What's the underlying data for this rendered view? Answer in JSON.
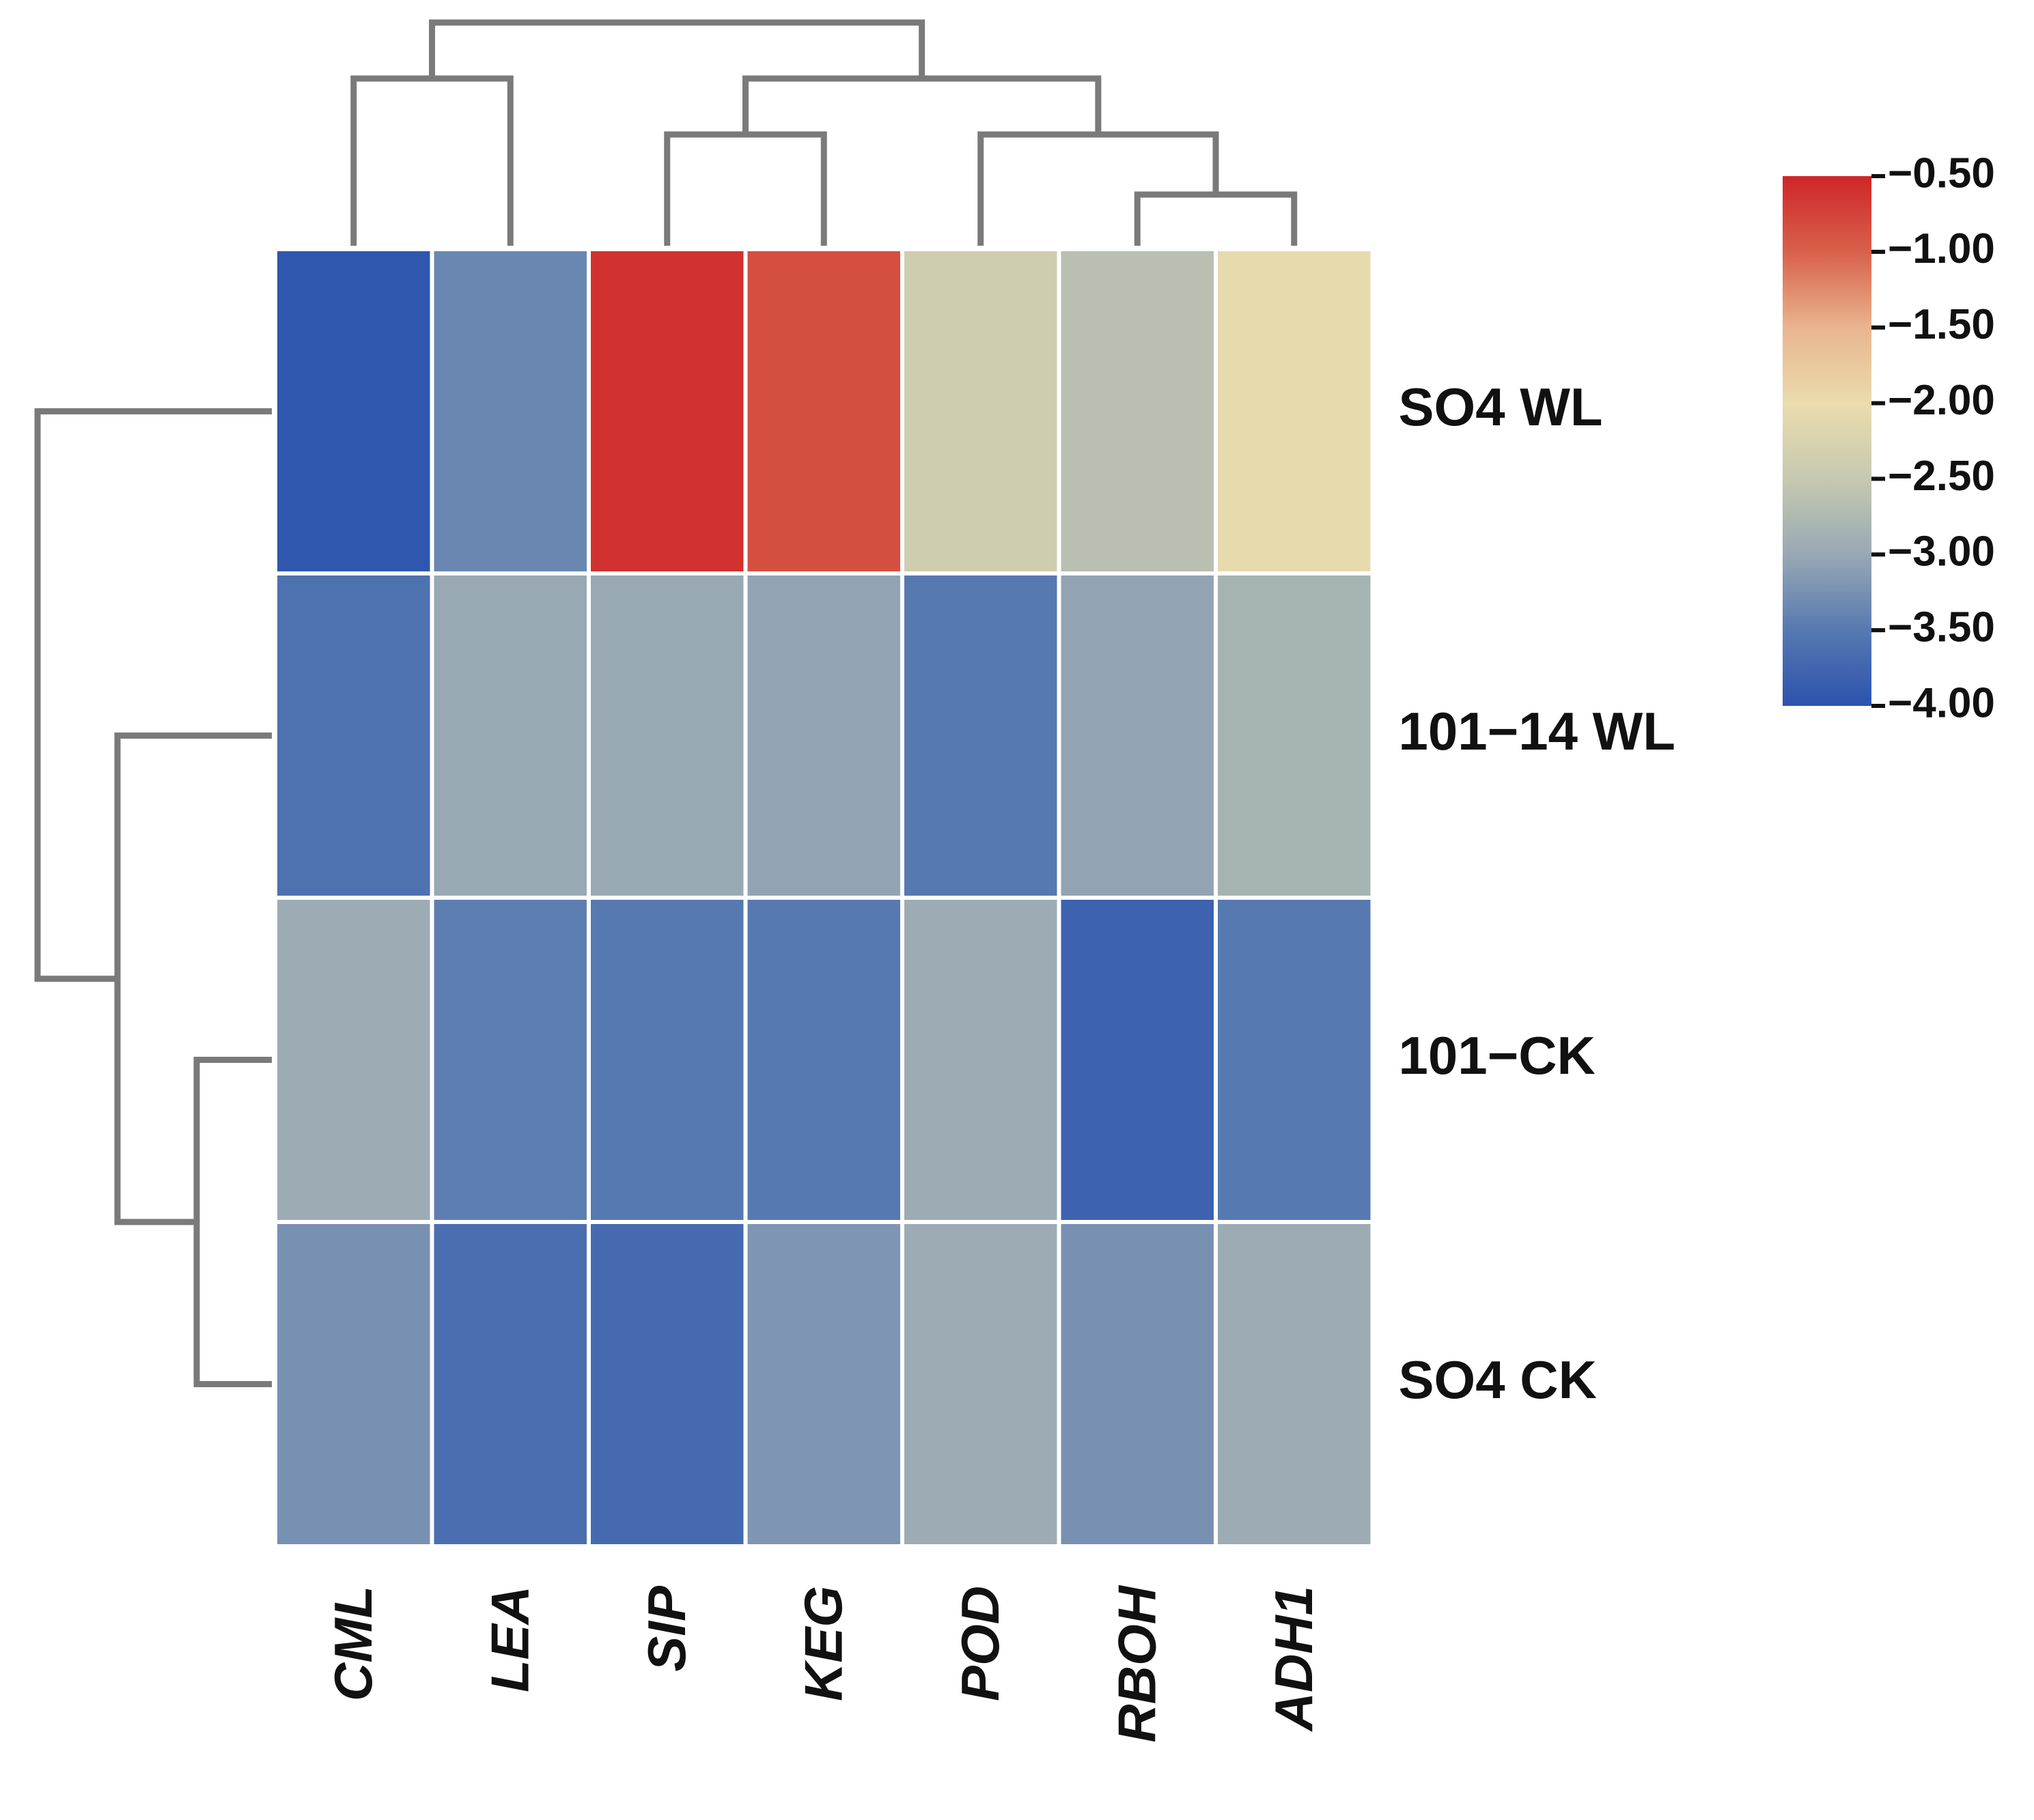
{
  "chart_data": {
    "type": "heatmap",
    "title": "",
    "xlabel": "",
    "ylabel": "",
    "columns": [
      "CML",
      "LEA",
      "SIP",
      "KEG",
      "POD",
      "RBOH",
      "ADH1"
    ],
    "rows": [
      "SO4 WL",
      "101−14 WL",
      "101−CK",
      "SO4 CK"
    ],
    "values": [
      [
        -3.95,
        -3.35,
        -0.6,
        -0.85,
        -2.4,
        -2.65,
        -2.05
      ],
      [
        -3.6,
        -3.0,
        -3.0,
        -3.05,
        -3.5,
        -3.05,
        -2.85
      ],
      [
        -2.95,
        -3.45,
        -3.5,
        -3.5,
        -2.95,
        -3.8,
        -3.5
      ],
      [
        -3.25,
        -3.65,
        -3.7,
        -3.2,
        -2.95,
        -3.25,
        -2.95
      ]
    ],
    "colorbar": {
      "min": -4.0,
      "max": -0.5,
      "ticks": [
        "−0.50",
        "−1.00",
        "−1.50",
        "−2.00",
        "−2.50",
        "−3.00",
        "−3.50",
        "−4.00"
      ],
      "tick_values": [
        -0.5,
        -1.0,
        -1.5,
        -2.0,
        -2.5,
        -3.0,
        -3.5,
        -4.0
      ],
      "colors": [
        "#2b53ae",
        "#5779b1",
        "#98a9b4",
        "#c7c9b0",
        "#eadcad",
        "#e9b58e",
        "#d8604c",
        "#cf2628"
      ]
    },
    "legend": "right",
    "grid": false,
    "dendrogram": {
      "columns": true,
      "rows": true
    }
  }
}
